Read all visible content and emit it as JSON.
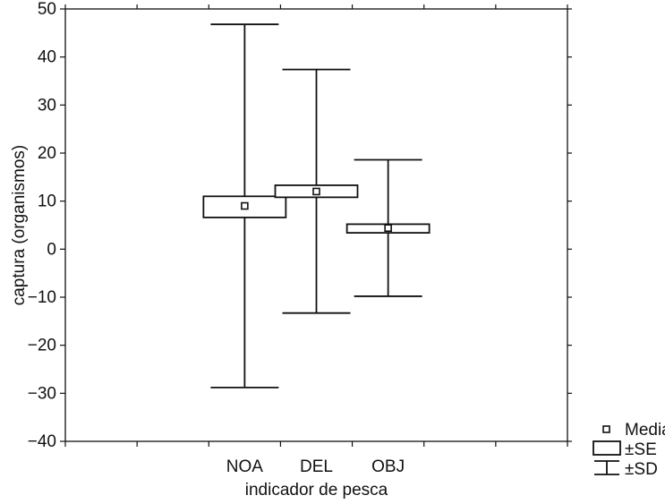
{
  "chart_data": {
    "type": "box",
    "xlabel": "indicador de pesca",
    "ylabel": "captura (organismos)",
    "ylim": [
      -40,
      50
    ],
    "yticks": [
      -40,
      -30,
      -20,
      -10,
      0,
      10,
      20,
      30,
      40,
      50
    ],
    "ytick_labels": [
      "−40",
      "−30",
      "−20",
      "−10",
      "0",
      "10",
      "20",
      "30",
      "40",
      "50"
    ],
    "categories": [
      "NOA",
      "DEL",
      "OBJ"
    ],
    "groups": [
      {
        "category": "NOA",
        "mean": 9.0,
        "se_low": 6.6,
        "se_high": 11.0,
        "sd_low": -28.8,
        "sd_high": 46.8
      },
      {
        "category": "DEL",
        "mean": 12.0,
        "se_low": 10.8,
        "se_high": 13.3,
        "sd_low": -13.3,
        "sd_high": 37.4
      },
      {
        "category": "OBJ",
        "mean": 4.4,
        "se_low": 3.4,
        "se_high": 5.2,
        "sd_low": -9.8,
        "sd_high": 18.6
      }
    ],
    "legend": {
      "position": "bottom-right-outside",
      "items": [
        {
          "key": "mean",
          "label": "Media"
        },
        {
          "key": "se",
          "label": "±SE"
        },
        {
          "key": "sd",
          "label": "±SD"
        }
      ]
    },
    "grid": false
  }
}
